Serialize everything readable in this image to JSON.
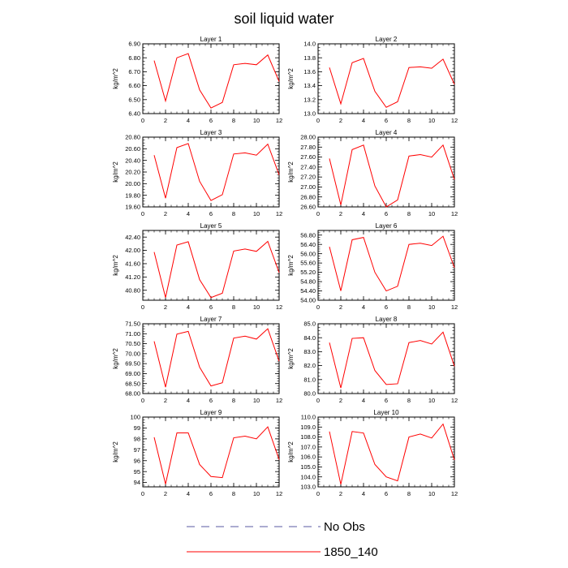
{
  "figure": {
    "title": "soil liquid water"
  },
  "legend": {
    "entries": [
      {
        "label": "No Obs",
        "color": "#5a5aa0",
        "dash": true
      },
      {
        "label": "1850_140",
        "color": "#ff0000",
        "dash": false
      }
    ]
  },
  "chart_data": [
    {
      "type": "line",
      "title": "Layer 1",
      "ylabel": "kg/m^2",
      "x": [
        1,
        2,
        3,
        4,
        5,
        6,
        7,
        8,
        9,
        10,
        11,
        12
      ],
      "xlim": [
        0,
        12
      ],
      "xticks": [
        0,
        2,
        4,
        6,
        8,
        10,
        12
      ],
      "ylim": [
        6.4,
        6.9
      ],
      "yticks": [
        "6.40",
        "6.50",
        "6.60",
        "6.70",
        "6.80",
        "6.90"
      ],
      "series": [
        {
          "name": "1850_140",
          "color": "#ff0000",
          "values": [
            6.78,
            6.49,
            6.8,
            6.83,
            6.57,
            6.44,
            6.48,
            6.75,
            6.76,
            6.75,
            6.82,
            6.63
          ]
        }
      ]
    },
    {
      "type": "line",
      "title": "Layer 2",
      "ylabel": "kg/m^2",
      "x": [
        1,
        2,
        3,
        4,
        5,
        6,
        7,
        8,
        9,
        10,
        11,
        12
      ],
      "xlim": [
        0,
        12
      ],
      "xticks": [
        0,
        2,
        4,
        6,
        8,
        10,
        12
      ],
      "ylim": [
        13.0,
        14.0
      ],
      "yticks": [
        "13.0",
        "13.2",
        "13.4",
        "13.6",
        "13.8",
        "14.0"
      ],
      "series": [
        {
          "name": "1850_140",
          "color": "#ff0000",
          "values": [
            13.66,
            13.14,
            13.73,
            13.79,
            13.32,
            13.09,
            13.17,
            13.66,
            13.67,
            13.65,
            13.78,
            13.42
          ]
        }
      ]
    },
    {
      "type": "line",
      "title": "Layer 3",
      "ylabel": "kg/m^2",
      "x": [
        1,
        2,
        3,
        4,
        5,
        6,
        7,
        8,
        9,
        10,
        11,
        12
      ],
      "xlim": [
        0,
        12
      ],
      "xticks": [
        0,
        2,
        4,
        6,
        8,
        10,
        12
      ],
      "ylim": [
        19.6,
        20.8
      ],
      "yticks": [
        "19.60",
        "19.80",
        "20.00",
        "20.20",
        "20.40",
        "20.60",
        "20.80"
      ],
      "series": [
        {
          "name": "1850_140",
          "color": "#ff0000",
          "values": [
            20.49,
            19.75,
            20.62,
            20.69,
            20.04,
            19.71,
            19.81,
            20.51,
            20.53,
            20.49,
            20.68,
            20.15
          ]
        }
      ]
    },
    {
      "type": "line",
      "title": "Layer 4",
      "ylabel": "kg/m^2",
      "x": [
        1,
        2,
        3,
        4,
        5,
        6,
        7,
        8,
        9,
        10,
        11,
        12
      ],
      "xlim": [
        0,
        12
      ],
      "xticks": [
        0,
        2,
        4,
        6,
        8,
        10,
        12
      ],
      "ylim": [
        26.6,
        28.0
      ],
      "yticks": [
        "26.60",
        "26.80",
        "27.00",
        "27.20",
        "27.40",
        "27.60",
        "27.80",
        "28.00"
      ],
      "series": [
        {
          "name": "1850_140",
          "color": "#ff0000",
          "values": [
            27.57,
            26.64,
            27.75,
            27.84,
            27.02,
            26.6,
            26.74,
            27.62,
            27.65,
            27.6,
            27.84,
            27.15
          ]
        }
      ]
    },
    {
      "type": "line",
      "title": "Layer 5",
      "ylabel": "kg/m^2",
      "x": [
        1,
        2,
        3,
        4,
        5,
        6,
        7,
        8,
        9,
        10,
        11,
        12
      ],
      "xlim": [
        0,
        12
      ],
      "xticks": [
        0,
        2,
        4,
        6,
        8,
        10,
        12
      ],
      "ylim": [
        40.5,
        42.6
      ],
      "yticks": [
        "40.80",
        "41.20",
        "41.60",
        "42.00",
        "42.40"
      ],
      "series": [
        {
          "name": "1850_140",
          "color": "#ff0000",
          "values": [
            41.95,
            40.58,
            42.16,
            42.26,
            41.12,
            40.58,
            40.71,
            41.98,
            42.04,
            41.97,
            42.27,
            41.33
          ]
        }
      ]
    },
    {
      "type": "line",
      "title": "Layer 6",
      "ylabel": "kg/m^2",
      "x": [
        1,
        2,
        3,
        4,
        5,
        6,
        7,
        8,
        9,
        10,
        11,
        12
      ],
      "xlim": [
        0,
        12
      ],
      "xticks": [
        0,
        2,
        4,
        6,
        8,
        10,
        12
      ],
      "ylim": [
        54.0,
        57.0
      ],
      "yticks": [
        "54.00",
        "54.40",
        "54.80",
        "55.20",
        "55.60",
        "56.00",
        "56.40",
        "56.80"
      ],
      "series": [
        {
          "name": "1850_140",
          "color": "#ff0000",
          "values": [
            56.3,
            54.4,
            56.6,
            56.7,
            55.2,
            54.4,
            54.6,
            56.4,
            56.45,
            56.35,
            56.75,
            55.4
          ]
        }
      ]
    },
    {
      "type": "line",
      "title": "Layer 7",
      "ylabel": "kg/m^2",
      "x": [
        1,
        2,
        3,
        4,
        5,
        6,
        7,
        8,
        9,
        10,
        11,
        12
      ],
      "xlim": [
        0,
        12
      ],
      "xticks": [
        0,
        2,
        4,
        6,
        8,
        10,
        12
      ],
      "ylim": [
        68.0,
        71.5
      ],
      "yticks": [
        "68.00",
        "68.50",
        "69.00",
        "69.50",
        "70.00",
        "70.50",
        "71.00",
        "71.50"
      ],
      "series": [
        {
          "name": "1850_140",
          "color": "#ff0000",
          "values": [
            70.62,
            68.32,
            70.98,
            71.12,
            69.32,
            68.38,
            68.54,
            70.78,
            70.88,
            70.73,
            71.25,
            69.62
          ]
        }
      ]
    },
    {
      "type": "line",
      "title": "Layer 8",
      "ylabel": "kg/m^2",
      "x": [
        1,
        2,
        3,
        4,
        5,
        6,
        7,
        8,
        9,
        10,
        11,
        12
      ],
      "xlim": [
        0,
        12
      ],
      "xticks": [
        0,
        2,
        4,
        6,
        8,
        10,
        12
      ],
      "ylim": [
        80.0,
        85.0
      ],
      "yticks": [
        "80.0",
        "81.0",
        "82.0",
        "83.0",
        "84.0",
        "85.0"
      ],
      "series": [
        {
          "name": "1850_140",
          "color": "#ff0000",
          "values": [
            83.65,
            80.4,
            83.95,
            84.0,
            81.65,
            80.65,
            80.7,
            83.65,
            83.8,
            83.55,
            84.4,
            81.95
          ]
        }
      ]
    },
    {
      "type": "line",
      "title": "Layer 9",
      "ylabel": "kg/m^2",
      "x": [
        1,
        2,
        3,
        4,
        5,
        6,
        7,
        8,
        9,
        10,
        11,
        12
      ],
      "xlim": [
        0,
        12
      ],
      "xticks": [
        0,
        2,
        4,
        6,
        8,
        10,
        12
      ],
      "ylim": [
        93.6,
        100.0
      ],
      "yticks": [
        "94",
        "95",
        "96",
        "97",
        "98",
        "99",
        "100"
      ],
      "series": [
        {
          "name": "1850_140",
          "color": "#ff0000",
          "values": [
            98.15,
            93.85,
            98.55,
            98.55,
            95.65,
            94.55,
            94.45,
            98.1,
            98.25,
            98.0,
            99.1,
            96.1
          ]
        }
      ]
    },
    {
      "type": "line",
      "title": "Layer 10",
      "ylabel": "kg/m^2",
      "x": [
        1,
        2,
        3,
        4,
        5,
        6,
        7,
        8,
        9,
        10,
        11,
        12
      ],
      "xlim": [
        0,
        12
      ],
      "xticks": [
        0,
        2,
        4,
        6,
        8,
        10,
        12
      ],
      "ylim": [
        103.0,
        110.0
      ],
      "yticks": [
        "103.0",
        "104.0",
        "105.0",
        "106.0",
        "107.0",
        "108.0",
        "109.0",
        "110.0"
      ],
      "series": [
        {
          "name": "1850_140",
          "color": "#ff0000",
          "values": [
            108.55,
            103.25,
            108.55,
            108.4,
            105.25,
            104.0,
            103.6,
            108.0,
            108.3,
            107.9,
            109.3,
            105.7
          ]
        }
      ]
    }
  ]
}
